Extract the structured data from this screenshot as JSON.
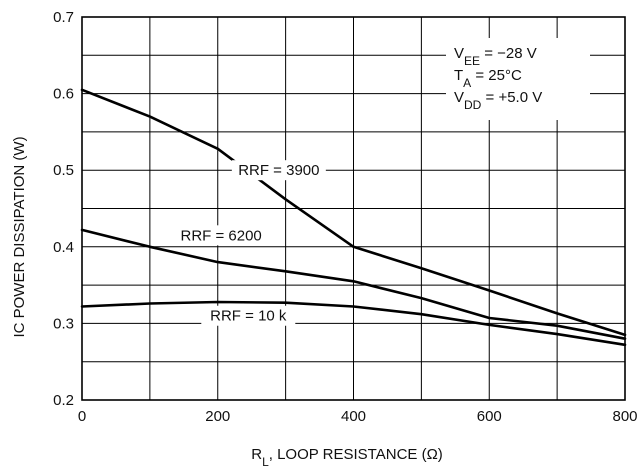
{
  "chart_data": {
    "type": "line",
    "xlabel": {
      "main": "R",
      "sub": "L",
      "rest": ", LOOP RESISTANCE (Ω)"
    },
    "ylabel": "IC POWER DISSIPATION (W)",
    "xlim": [
      0,
      800
    ],
    "ylim": [
      0.2,
      0.7
    ],
    "x_ticks": [
      0,
      200,
      400,
      600,
      800
    ],
    "x_tick_labels": [
      "0",
      "200",
      "400",
      "600",
      "800"
    ],
    "x_minor_step": 100,
    "y_ticks": [
      0.2,
      0.3,
      0.4,
      0.5,
      0.6,
      0.7
    ],
    "y_tick_labels": [
      "0.2",
      "0.3",
      "0.4",
      "0.5",
      "0.6",
      "0.7"
    ],
    "y_minor_step": 0.05,
    "grid": true,
    "conditions": [
      {
        "main": "V",
        "sub": "EE",
        "rest": " = −28 V"
      },
      {
        "main": "T",
        "sub": "A",
        "rest": " = 25°C"
      },
      {
        "main": "V",
        "sub": "DD",
        "rest": " = +5.0 V"
      }
    ],
    "series": [
      {
        "name": "RRF = 3900",
        "x": [
          0,
          100,
          200,
          300,
          400,
          500,
          600,
          700,
          800
        ],
        "y": [
          0.605,
          0.57,
          0.528,
          0.462,
          0.4,
          0.372,
          0.343,
          0.313,
          0.285
        ]
      },
      {
        "name": "RRF = 6200",
        "x": [
          0,
          100,
          200,
          300,
          400,
          500,
          600,
          700,
          800
        ],
        "y": [
          0.422,
          0.4,
          0.38,
          0.368,
          0.355,
          0.333,
          0.307,
          0.297,
          0.28
        ]
      },
      {
        "name": "RRF = 10 k",
        "x": [
          0,
          100,
          200,
          300,
          400,
          500,
          600,
          700,
          800
        ],
        "y": [
          0.322,
          0.326,
          0.328,
          0.327,
          0.322,
          0.312,
          0.298,
          0.286,
          0.272
        ]
      }
    ]
  }
}
